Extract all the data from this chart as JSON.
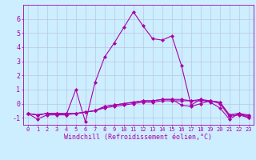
{
  "xlabel": "Windchill (Refroidissement éolien,°C)",
  "ylabel": "",
  "background_color": "#cceeff",
  "grid_color": "#bbbbdd",
  "line_color": "#aa00aa",
  "xlim_min": -0.5,
  "xlim_max": 23.5,
  "ylim_min": -1.5,
  "ylim_max": 7.0,
  "xticks": [
    0,
    1,
    2,
    3,
    4,
    5,
    6,
    7,
    8,
    9,
    10,
    11,
    12,
    13,
    14,
    15,
    16,
    17,
    18,
    19,
    20,
    21,
    22,
    23
  ],
  "yticks": [
    -1,
    0,
    1,
    2,
    3,
    4,
    5,
    6
  ],
  "series": [
    [
      -0.7,
      -1.1,
      -0.8,
      -0.8,
      -0.8,
      1.0,
      -1.3,
      1.5,
      3.3,
      4.3,
      5.4,
      6.5,
      5.5,
      4.6,
      4.5,
      4.8,
      2.7,
      -0.1,
      0.3,
      0.1,
      -0.3,
      -1.1,
      -0.7,
      -1.0
    ],
    [
      -0.7,
      -0.8,
      -0.7,
      -0.7,
      -0.7,
      -0.7,
      -0.6,
      -0.5,
      -0.3,
      -0.2,
      -0.1,
      0.0,
      0.1,
      0.1,
      0.2,
      0.2,
      0.2,
      0.2,
      0.2,
      0.2,
      0.1,
      -0.8,
      -0.7,
      -0.8
    ],
    [
      -0.7,
      -0.8,
      -0.7,
      -0.7,
      -0.7,
      -0.7,
      -0.6,
      -0.5,
      -0.2,
      -0.1,
      0.0,
      0.1,
      0.2,
      0.2,
      0.3,
      0.3,
      0.3,
      0.2,
      0.3,
      0.2,
      0.1,
      -0.8,
      -0.7,
      -0.9
    ],
    [
      -0.7,
      -0.8,
      -0.7,
      -0.7,
      -0.8,
      -0.7,
      -0.6,
      -0.5,
      -0.2,
      -0.1,
      0.0,
      0.1,
      0.2,
      0.2,
      0.3,
      0.3,
      -0.1,
      -0.2,
      0.0,
      0.2,
      0.0,
      -0.9,
      -0.8,
      -1.0
    ]
  ],
  "marker": "D",
  "markersize": 2,
  "linewidth": 0.8,
  "tick_fontsize": 5,
  "xlabel_fontsize": 6
}
